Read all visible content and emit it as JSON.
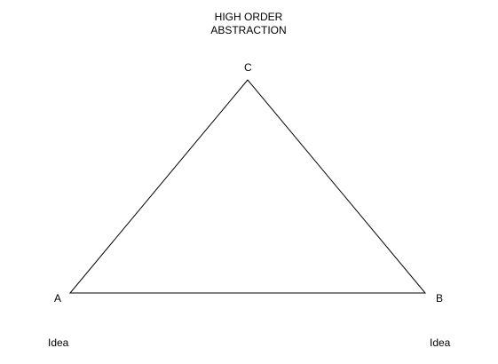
{
  "title": {
    "line1": "HIGH ORDER",
    "line2": "ABSTRACTION"
  },
  "vertices": {
    "top": "C",
    "left": "A",
    "right": "B"
  },
  "bottom_labels": {
    "left": "Idea",
    "right": "Idea"
  },
  "colors": {
    "stroke": "#000000",
    "background": "#ffffff"
  }
}
